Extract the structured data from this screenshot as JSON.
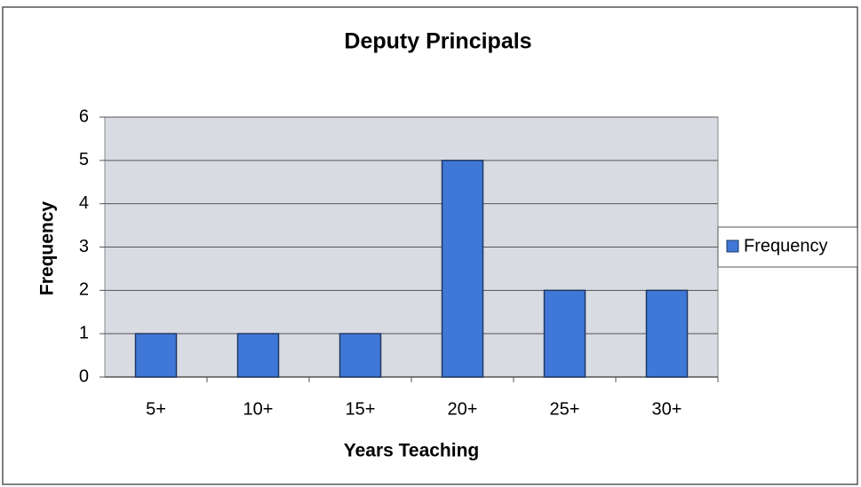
{
  "chart_data": {
    "type": "bar",
    "title": "Deputy Principals",
    "x_label": "Years Teaching",
    "y_label": "Frequency",
    "categories": [
      "5+",
      "10+",
      "15+",
      "20+",
      "25+",
      "30+"
    ],
    "series": [
      {
        "name": "Frequency",
        "color": "#3f78d6",
        "values": [
          1,
          1,
          1,
          5,
          2,
          2
        ]
      }
    ],
    "ylim": [
      0,
      6
    ],
    "yticks": [
      0,
      1,
      2,
      3,
      4,
      5,
      6
    ],
    "grid": true,
    "legend": "right"
  }
}
